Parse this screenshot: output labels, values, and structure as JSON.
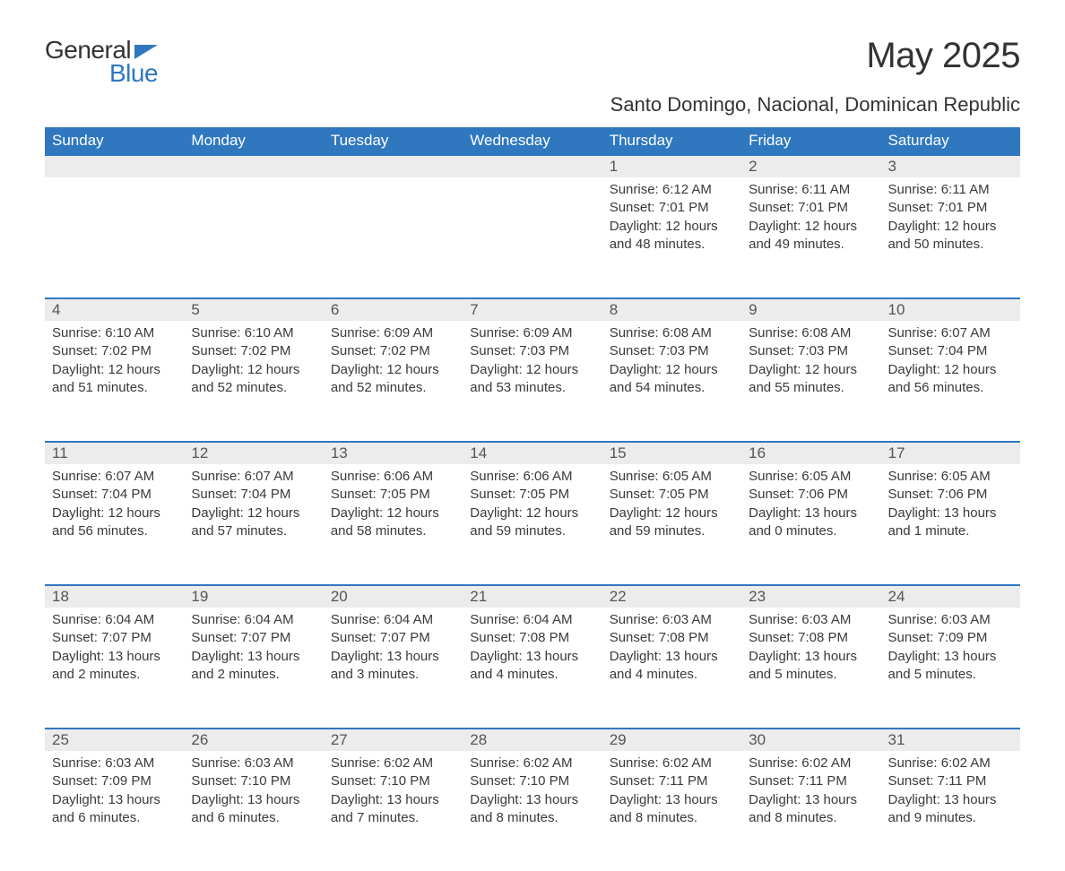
{
  "brand": {
    "word1": "General",
    "word2": "Blue"
  },
  "title": "May 2025",
  "subtitle": "Santo Domingo, Nacional, Dominican Republic",
  "colors": {
    "accent": "#2f78c0",
    "header_text": "#ffffff",
    "daynum_bg": "#ececec",
    "body_text": "#333333",
    "background": "#ffffff"
  },
  "day_headers": [
    "Sunday",
    "Monday",
    "Tuesday",
    "Wednesday",
    "Thursday",
    "Friday",
    "Saturday"
  ],
  "weeks": [
    [
      null,
      null,
      null,
      null,
      {
        "n": "1",
        "sunrise": "6:12 AM",
        "sunset": "7:01 PM",
        "daylight": "12 hours and 48 minutes."
      },
      {
        "n": "2",
        "sunrise": "6:11 AM",
        "sunset": "7:01 PM",
        "daylight": "12 hours and 49 minutes."
      },
      {
        "n": "3",
        "sunrise": "6:11 AM",
        "sunset": "7:01 PM",
        "daylight": "12 hours and 50 minutes."
      }
    ],
    [
      {
        "n": "4",
        "sunrise": "6:10 AM",
        "sunset": "7:02 PM",
        "daylight": "12 hours and 51 minutes."
      },
      {
        "n": "5",
        "sunrise": "6:10 AM",
        "sunset": "7:02 PM",
        "daylight": "12 hours and 52 minutes."
      },
      {
        "n": "6",
        "sunrise": "6:09 AM",
        "sunset": "7:02 PM",
        "daylight": "12 hours and 52 minutes."
      },
      {
        "n": "7",
        "sunrise": "6:09 AM",
        "sunset": "7:03 PM",
        "daylight": "12 hours and 53 minutes."
      },
      {
        "n": "8",
        "sunrise": "6:08 AM",
        "sunset": "7:03 PM",
        "daylight": "12 hours and 54 minutes."
      },
      {
        "n": "9",
        "sunrise": "6:08 AM",
        "sunset": "7:03 PM",
        "daylight": "12 hours and 55 minutes."
      },
      {
        "n": "10",
        "sunrise": "6:07 AM",
        "sunset": "7:04 PM",
        "daylight": "12 hours and 56 minutes."
      }
    ],
    [
      {
        "n": "11",
        "sunrise": "6:07 AM",
        "sunset": "7:04 PM",
        "daylight": "12 hours and 56 minutes."
      },
      {
        "n": "12",
        "sunrise": "6:07 AM",
        "sunset": "7:04 PM",
        "daylight": "12 hours and 57 minutes."
      },
      {
        "n": "13",
        "sunrise": "6:06 AM",
        "sunset": "7:05 PM",
        "daylight": "12 hours and 58 minutes."
      },
      {
        "n": "14",
        "sunrise": "6:06 AM",
        "sunset": "7:05 PM",
        "daylight": "12 hours and 59 minutes."
      },
      {
        "n": "15",
        "sunrise": "6:05 AM",
        "sunset": "7:05 PM",
        "daylight": "12 hours and 59 minutes."
      },
      {
        "n": "16",
        "sunrise": "6:05 AM",
        "sunset": "7:06 PM",
        "daylight": "13 hours and 0 minutes."
      },
      {
        "n": "17",
        "sunrise": "6:05 AM",
        "sunset": "7:06 PM",
        "daylight": "13 hours and 1 minute."
      }
    ],
    [
      {
        "n": "18",
        "sunrise": "6:04 AM",
        "sunset": "7:07 PM",
        "daylight": "13 hours and 2 minutes."
      },
      {
        "n": "19",
        "sunrise": "6:04 AM",
        "sunset": "7:07 PM",
        "daylight": "13 hours and 2 minutes."
      },
      {
        "n": "20",
        "sunrise": "6:04 AM",
        "sunset": "7:07 PM",
        "daylight": "13 hours and 3 minutes."
      },
      {
        "n": "21",
        "sunrise": "6:04 AM",
        "sunset": "7:08 PM",
        "daylight": "13 hours and 4 minutes."
      },
      {
        "n": "22",
        "sunrise": "6:03 AM",
        "sunset": "7:08 PM",
        "daylight": "13 hours and 4 minutes."
      },
      {
        "n": "23",
        "sunrise": "6:03 AM",
        "sunset": "7:08 PM",
        "daylight": "13 hours and 5 minutes."
      },
      {
        "n": "24",
        "sunrise": "6:03 AM",
        "sunset": "7:09 PM",
        "daylight": "13 hours and 5 minutes."
      }
    ],
    [
      {
        "n": "25",
        "sunrise": "6:03 AM",
        "sunset": "7:09 PM",
        "daylight": "13 hours and 6 minutes."
      },
      {
        "n": "26",
        "sunrise": "6:03 AM",
        "sunset": "7:10 PM",
        "daylight": "13 hours and 6 minutes."
      },
      {
        "n": "27",
        "sunrise": "6:02 AM",
        "sunset": "7:10 PM",
        "daylight": "13 hours and 7 minutes."
      },
      {
        "n": "28",
        "sunrise": "6:02 AM",
        "sunset": "7:10 PM",
        "daylight": "13 hours and 8 minutes."
      },
      {
        "n": "29",
        "sunrise": "6:02 AM",
        "sunset": "7:11 PM",
        "daylight": "13 hours and 8 minutes."
      },
      {
        "n": "30",
        "sunrise": "6:02 AM",
        "sunset": "7:11 PM",
        "daylight": "13 hours and 8 minutes."
      },
      {
        "n": "31",
        "sunrise": "6:02 AM",
        "sunset": "7:11 PM",
        "daylight": "13 hours and 9 minutes."
      }
    ]
  ],
  "labels": {
    "sunrise": "Sunrise: ",
    "sunset": "Sunset: ",
    "daylight": "Daylight: "
  }
}
